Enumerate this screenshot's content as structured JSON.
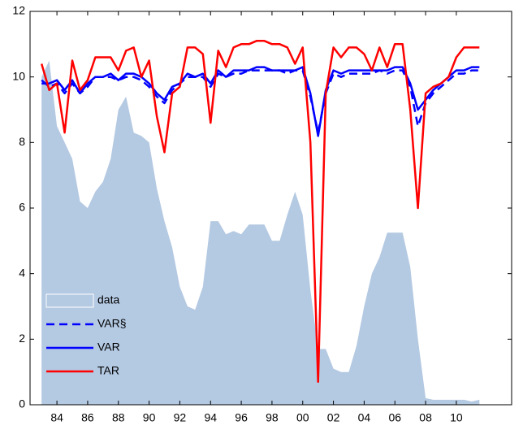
{
  "chart_data": {
    "type": "line",
    "x": [
      1983,
      1983.5,
      1984,
      1984.5,
      1985,
      1985.5,
      1986,
      1986.5,
      1987,
      1987.5,
      1988,
      1988.5,
      1989,
      1989.5,
      1990,
      1990.5,
      1991,
      1991.5,
      1992,
      1992.5,
      1993,
      1993.5,
      1994,
      1994.5,
      1995,
      1995.5,
      1996,
      1996.5,
      1997,
      1997.5,
      1998,
      1998.5,
      1999,
      1999.5,
      2000,
      2000.5,
      2001,
      2001.5,
      2002,
      2002.5,
      2003,
      2003.5,
      2004,
      2004.5,
      2005,
      2005.5,
      2006,
      2006.5,
      2007,
      2007.5,
      2008,
      2008.5,
      2009,
      2009.5,
      2010,
      2010.5,
      2011,
      2011.5
    ],
    "series": [
      {
        "name": "data",
        "color": "#b4c9e2",
        "fill": true,
        "values": [
          10.0,
          10.5,
          8.5,
          8.0,
          7.5,
          6.2,
          6.0,
          6.5,
          6.8,
          7.5,
          9.0,
          9.4,
          8.3,
          8.2,
          8.0,
          6.6,
          5.6,
          4.8,
          3.6,
          3.0,
          2.9,
          3.6,
          5.6,
          5.6,
          5.2,
          5.3,
          5.2,
          5.5,
          5.5,
          5.5,
          5.0,
          5.0,
          5.8,
          6.5,
          5.8,
          3.5,
          1.7,
          1.7,
          1.1,
          1.0,
          1.0,
          1.8,
          3.0,
          4.0,
          4.5,
          5.25,
          5.25,
          5.25,
          4.2,
          2.0,
          0.2,
          0.15,
          0.15,
          0.15,
          0.15,
          0.15,
          0.1,
          0.15
        ]
      },
      {
        "name": "VAR§",
        "color": "#0000ff",
        "dashed": true,
        "values": [
          9.9,
          9.7,
          9.8,
          9.5,
          9.8,
          9.5,
          9.7,
          10.0,
          10.0,
          10.0,
          9.9,
          10.0,
          10.0,
          9.9,
          9.7,
          9.4,
          9.2,
          9.6,
          9.8,
          10.0,
          10.0,
          10.0,
          9.7,
          10.1,
          10.0,
          10.1,
          10.1,
          10.2,
          10.2,
          10.2,
          10.2,
          10.2,
          10.1,
          10.2,
          10.2,
          9.4,
          8.3,
          9.5,
          10.1,
          10.0,
          10.1,
          10.1,
          10.1,
          10.1,
          10.2,
          10.1,
          10.2,
          10.2,
          9.7,
          8.5,
          9.2,
          9.5,
          9.7,
          9.9,
          10.1,
          10.1,
          10.2,
          10.2
        ]
      },
      {
        "name": "VAR",
        "color": "#0000ff",
        "values": [
          9.8,
          9.8,
          9.9,
          9.6,
          9.9,
          9.5,
          9.8,
          10.0,
          10.0,
          10.1,
          9.9,
          10.1,
          10.1,
          10.0,
          9.8,
          9.5,
          9.3,
          9.7,
          9.8,
          10.1,
          10.0,
          10.1,
          9.8,
          10.2,
          10.0,
          10.2,
          10.2,
          10.2,
          10.3,
          10.3,
          10.2,
          10.2,
          10.2,
          10.2,
          10.3,
          9.5,
          8.2,
          9.6,
          10.2,
          10.1,
          10.2,
          10.2,
          10.2,
          10.2,
          10.2,
          10.2,
          10.3,
          10.3,
          9.8,
          9.0,
          9.3,
          9.6,
          9.8,
          10.0,
          10.2,
          10.2,
          10.3,
          10.3
        ]
      },
      {
        "name": "TAR",
        "color": "#ff0000",
        "values": [
          10.4,
          9.6,
          9.8,
          8.3,
          10.5,
          9.6,
          9.9,
          10.6,
          10.6,
          10.6,
          10.2,
          10.8,
          10.9,
          10.0,
          10.5,
          8.8,
          7.7,
          9.5,
          9.7,
          10.9,
          10.9,
          10.7,
          8.6,
          10.8,
          10.3,
          10.9,
          11.0,
          11.0,
          11.1,
          11.1,
          11.0,
          11.0,
          10.9,
          10.4,
          10.9,
          8.0,
          0.7,
          9.5,
          10.9,
          10.6,
          10.9,
          10.9,
          10.7,
          10.2,
          10.9,
          10.3,
          11.0,
          11.0,
          9.0,
          6.0,
          9.5,
          9.7,
          9.8,
          10.0,
          10.6,
          10.9,
          10.9,
          10.9
        ]
      }
    ],
    "xlim": [
      1982.25,
      2013.6
    ],
    "xticks": [
      {
        "value": 1984,
        "label": "84"
      },
      {
        "value": 1986,
        "label": "86"
      },
      {
        "value": 1988,
        "label": "88"
      },
      {
        "value": 1990,
        "label": "90"
      },
      {
        "value": 1992,
        "label": "92"
      },
      {
        "value": 1994,
        "label": "94"
      },
      {
        "value": 1996,
        "label": "96"
      },
      {
        "value": 1998,
        "label": "98"
      },
      {
        "value": 2000,
        "label": "00"
      },
      {
        "value": 2002,
        "label": "02"
      },
      {
        "value": 2004,
        "label": "04"
      },
      {
        "value": 2006,
        "label": "06"
      },
      {
        "value": 2008,
        "label": "08"
      },
      {
        "value": 2010,
        "label": "10"
      }
    ],
    "ylim": [
      0,
      12
    ],
    "yticks": [
      0,
      2,
      4,
      6,
      8,
      10,
      12
    ],
    "grid": false,
    "legend": "lower left"
  }
}
